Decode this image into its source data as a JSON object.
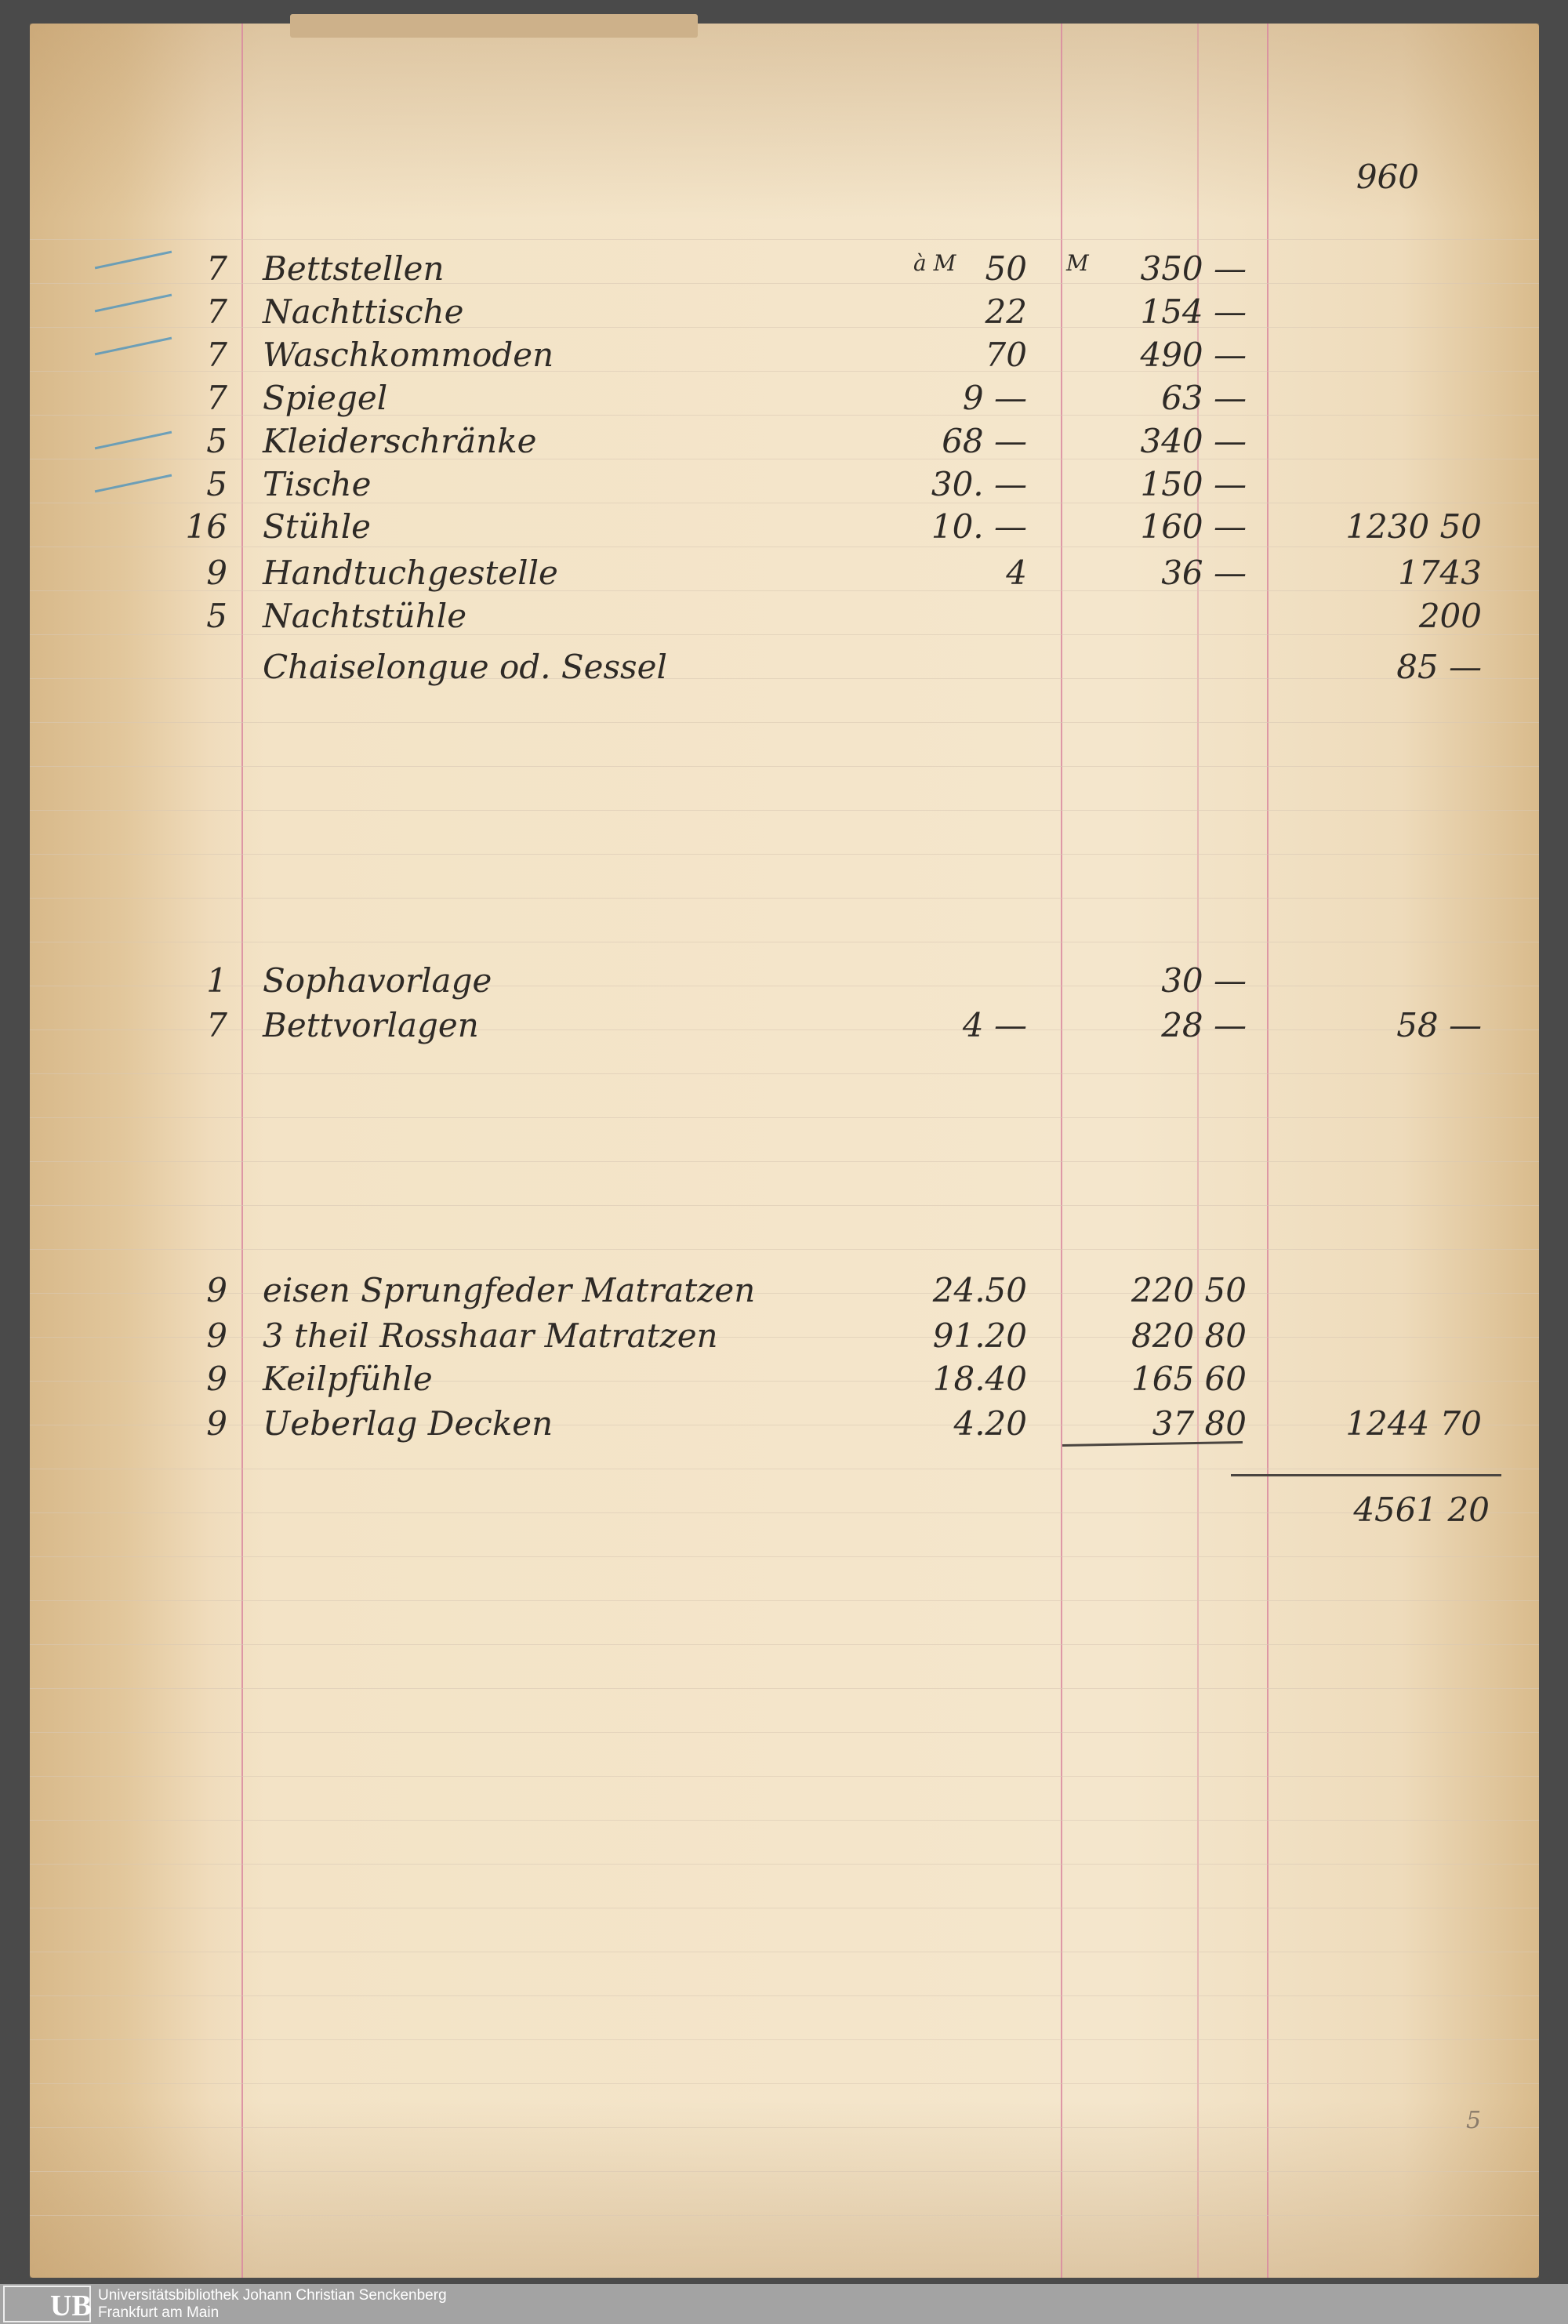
{
  "document": {
    "top_note": "960",
    "currency_marks": {
      "unit": "à M",
      "total": "M"
    },
    "sections": [
      {
        "items": [
          {
            "qty": "7",
            "description": "Bettstellen",
            "unit_price": "50",
            "total": "350 —"
          },
          {
            "qty": "7",
            "description": "Nachttische",
            "unit_price": "22",
            "total": "154 —"
          },
          {
            "qty": "7",
            "description": "Waschkommoden",
            "unit_price": "70",
            "total": "490 —"
          },
          {
            "qty": "7",
            "description": "Spiegel",
            "unit_price": "9 —",
            "total": "63 —"
          },
          {
            "qty": "5",
            "description": "Kleiderschränke",
            "unit_price": "68 —",
            "total": "340 —"
          },
          {
            "qty": "5",
            "description": "Tische",
            "unit_price": "30. —",
            "total": "150 —"
          },
          {
            "qty": "16",
            "description": "Stühle",
            "unit_price": "10. —",
            "total": "160 —",
            "subtotal": "1230 50"
          },
          {
            "qty": "9",
            "description": "Handtuchgestelle",
            "unit_price": "4",
            "total": "36 —",
            "subtotal": "1743"
          },
          {
            "qty": "5",
            "description": "Nachtstühle",
            "unit_price": "",
            "total": "",
            "subtotal": "200"
          },
          {
            "qty": "",
            "description": "Chaiselongue od. Sessel",
            "unit_price": "",
            "total": "",
            "subtotal": "85 —"
          }
        ]
      },
      {
        "items": [
          {
            "qty": "1",
            "description": "Sophavorlage",
            "unit_price": "",
            "total": "30 —"
          },
          {
            "qty": "7",
            "description": "Bettvorlagen",
            "unit_price": "4 —",
            "total": "28 —",
            "subtotal": "58 —"
          }
        ]
      },
      {
        "items": [
          {
            "qty": "9",
            "description": "eisen Sprungfeder Matratzen",
            "unit_price": "24.50",
            "total": "220 50"
          },
          {
            "qty": "9",
            "description": "3 theil Rosshaar Matratzen",
            "unit_price": "91.20",
            "total": "820 80"
          },
          {
            "qty": "9",
            "description": "Keilpfühle",
            "unit_price": "18.40",
            "total": "165 60"
          },
          {
            "qty": "9",
            "description": "Ueberlag Decken",
            "unit_price": "4.20",
            "total": "37 80",
            "subtotal": "1244 70"
          }
        ]
      }
    ],
    "grand_total": "4561 20",
    "page_mark": "5"
  },
  "footer": {
    "logo": "UB",
    "institution": "Universitätsbibliothek Johann Christian Senckenberg",
    "city": "Frankfurt am Main"
  },
  "colors": {
    "paper": "#f3e3c6",
    "ruling_red": "#d98aa0",
    "ink": "#2e2a26",
    "blue_pencil": "#4d93bd",
    "footer": "#a3a3a3"
  }
}
